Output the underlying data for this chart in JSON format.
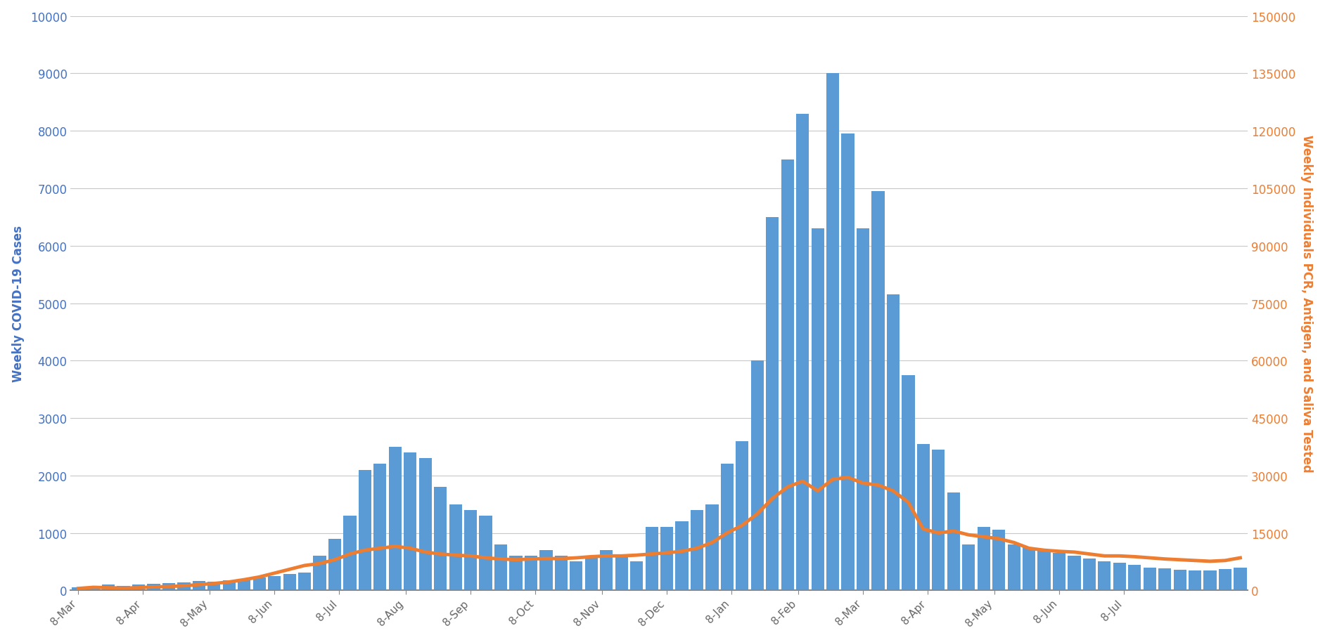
{
  "x_labels": [
    "8-Mar",
    "8-Apr",
    "8-May",
    "8-Jun",
    "8-Jul",
    "8-Aug",
    "8-Sep",
    "8-Oct",
    "8-Nov",
    "8-Dec",
    "8-Jan",
    "8-Feb",
    "8-Mar",
    "8-Apr",
    "8-May",
    "8-Jun",
    "8-Jul"
  ],
  "bar_color": "#5b9bd5",
  "line_color": "#ed7d31",
  "line_width": 3.5,
  "left_ylabel": "Weekly COVID-19 Cases",
  "right_ylabel": "Weekly Individuals PCR, Antigen, and Saliva Tested",
  "left_ylim": [
    0,
    10000
  ],
  "right_ylim": [
    0,
    150000
  ],
  "left_yticks": [
    0,
    1000,
    2000,
    3000,
    4000,
    5000,
    6000,
    7000,
    8000,
    9000,
    10000
  ],
  "right_yticks": [
    0,
    15000,
    30000,
    45000,
    60000,
    75000,
    90000,
    105000,
    120000,
    135000,
    150000
  ],
  "left_tick_color": "#4472c4",
  "right_tick_color": "#ed7d31",
  "grid_color": "#c8c8c8",
  "background_color": "#ffffff",
  "bar_values": [
    50,
    70,
    100,
    80,
    100,
    120,
    130,
    140,
    160,
    150,
    170,
    200,
    220,
    250,
    280,
    310,
    600,
    900,
    1300,
    2100,
    2200,
    2500,
    2400,
    2300,
    1800,
    1500,
    1400,
    1300,
    800,
    600,
    600,
    700,
    600,
    500,
    600,
    700,
    600,
    500,
    1100,
    1100,
    1200,
    1400,
    1500,
    2200,
    2600,
    4000,
    6500,
    7500,
    8300,
    6300,
    9000,
    7950,
    6300,
    6950,
    5150,
    3750,
    2550,
    2450,
    1700,
    800,
    1100,
    1050,
    800,
    750,
    700,
    650,
    600,
    550,
    500,
    480,
    450,
    400,
    380,
    360,
    350,
    350,
    370,
    400
  ],
  "line_values": [
    500,
    800,
    700,
    600,
    700,
    900,
    1000,
    1200,
    1500,
    1800,
    2200,
    2800,
    3500,
    4500,
    5500,
    6500,
    7000,
    8000,
    9500,
    10500,
    11000,
    11500,
    11000,
    10000,
    9500,
    9200,
    9000,
    8500,
    8200,
    8000,
    8200,
    8300,
    8300,
    8500,
    8800,
    9000,
    9000,
    9200,
    9500,
    9800,
    10200,
    11000,
    12500,
    15000,
    17000,
    20000,
    24000,
    27000,
    28500,
    26000,
    29000,
    29500,
    28000,
    27500,
    26000,
    23000,
    16000,
    15000,
    15500,
    14500,
    14000,
    13500,
    12500,
    11000,
    10500,
    10200,
    10000,
    9500,
    9000,
    9000,
    8800,
    8500,
    8200,
    8000,
    7800,
    7600,
    7800,
    8500
  ],
  "monthly_tick_positions": [
    0,
    4.3,
    8.7,
    13.0,
    17.3,
    21.7,
    26.0,
    30.3,
    34.7,
    39.0,
    43.3,
    47.7,
    52.0,
    56.3,
    60.7,
    65.0,
    69.3
  ]
}
